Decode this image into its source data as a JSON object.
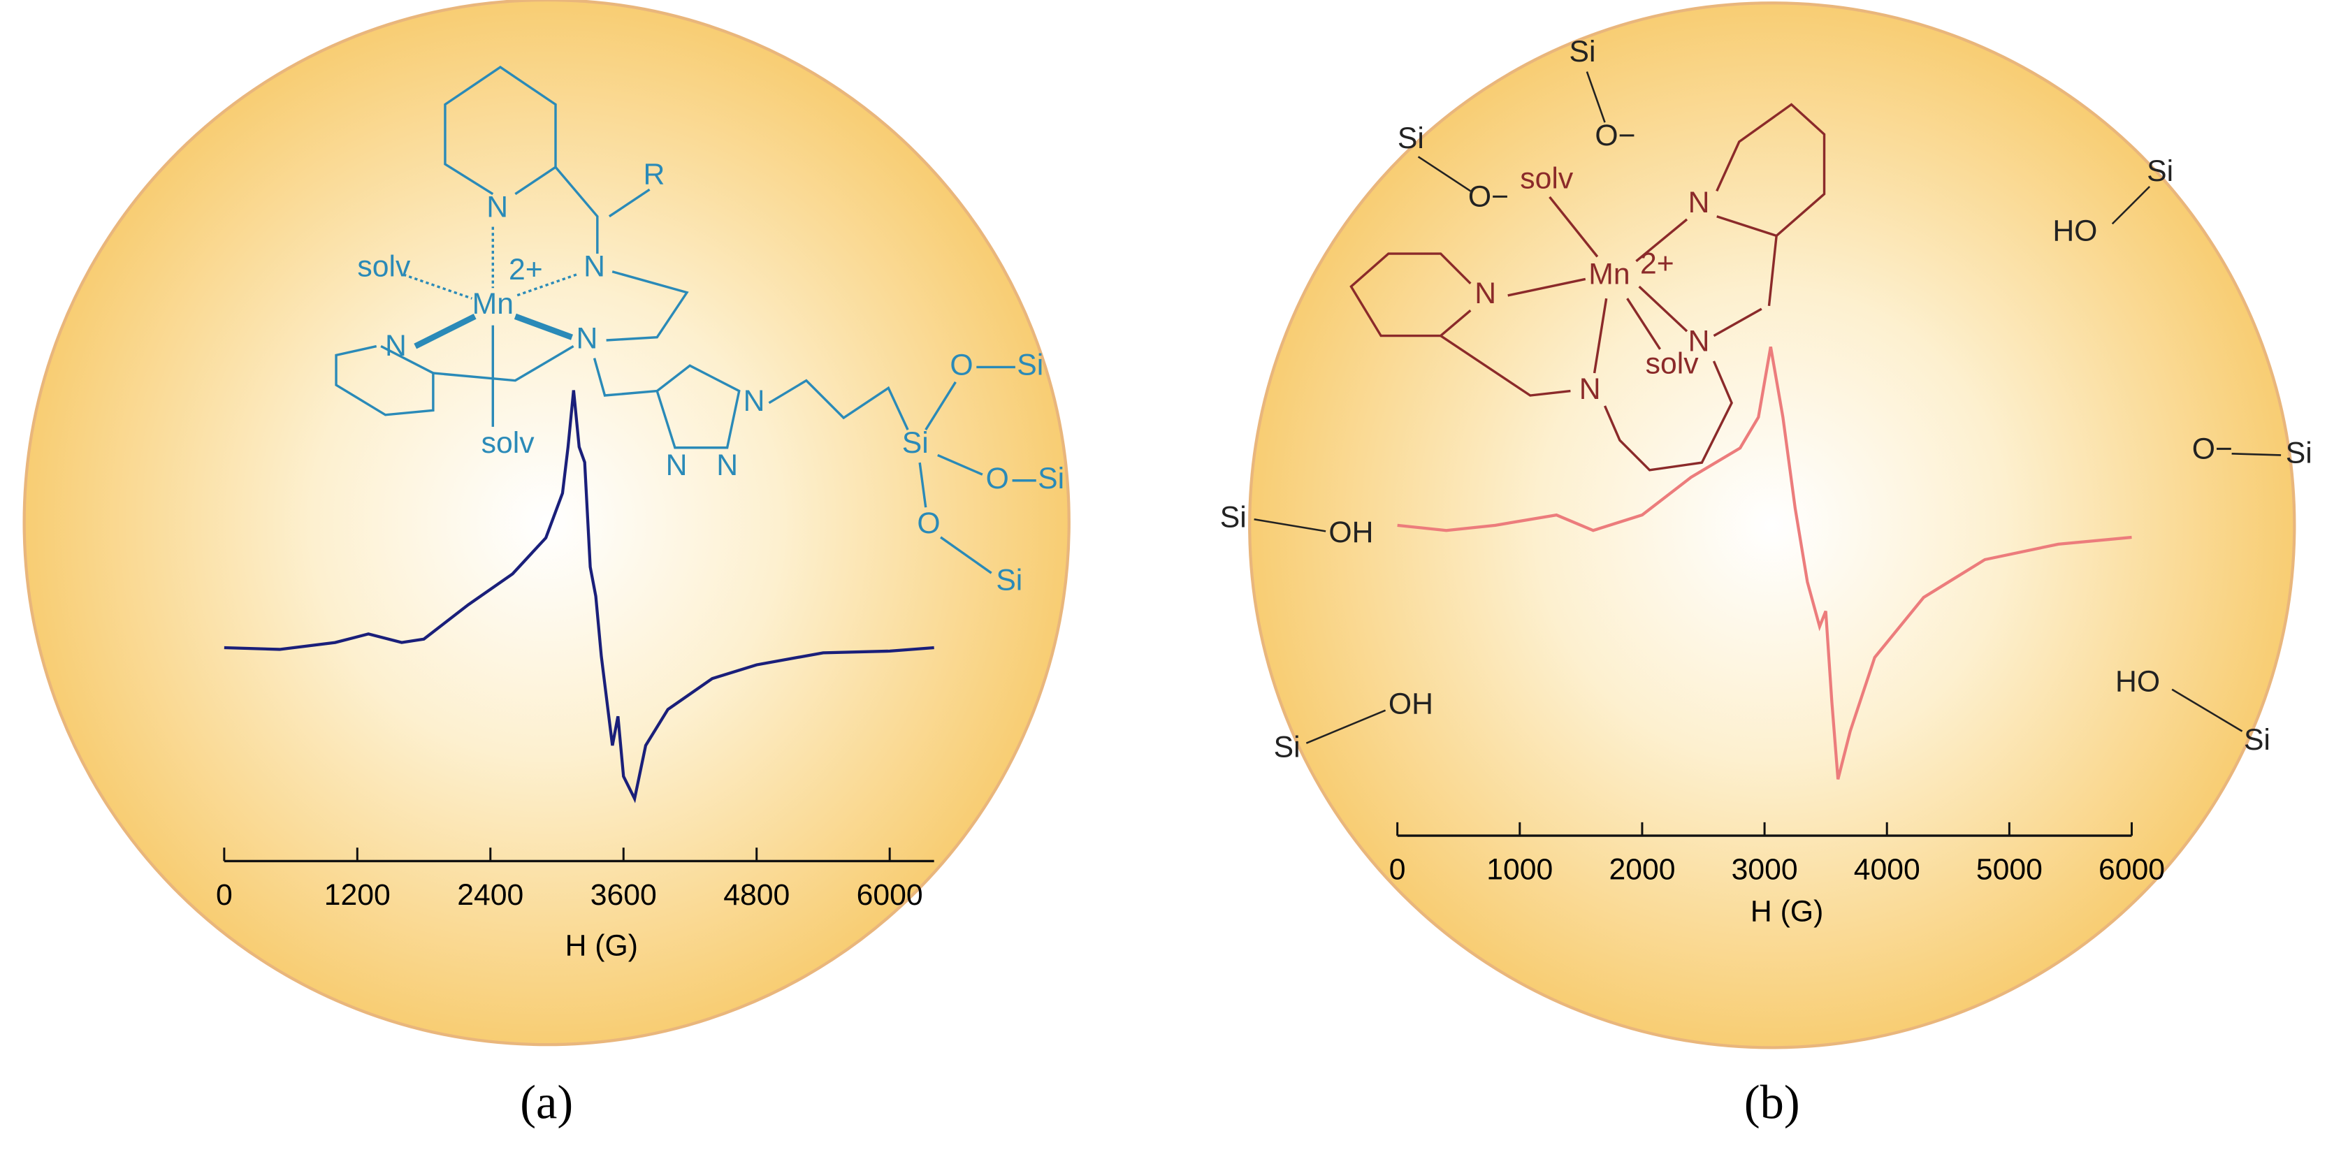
{
  "chart_data": [
    {
      "type": "line",
      "panel_label": "(a)",
      "xlabel": "H (G)",
      "color": "#1a1f7a",
      "x": [
        0,
        500,
        1000,
        1300,
        1600,
        1800,
        2200,
        2600,
        2900,
        3050,
        3100,
        3150,
        3200,
        3250,
        3300,
        3350,
        3400,
        3450,
        3500,
        3550,
        3600,
        3700,
        3800,
        4000,
        4400,
        4800,
        5400,
        6000,
        6400
      ],
      "values": [
        0,
        -0.01,
        0.03,
        0.08,
        0.03,
        0.05,
        0.25,
        0.43,
        0.64,
        0.9,
        1.17,
        1.5,
        1.17,
        1.08,
        0.47,
        0.3,
        -0.05,
        -0.31,
        -0.57,
        -0.4,
        -0.75,
        -0.88,
        -0.57,
        -0.36,
        -0.18,
        -0.1,
        -0.03,
        -0.02,
        0
      ],
      "xlim": [
        0,
        6400
      ],
      "xticks": [
        0,
        1200,
        2400,
        3600,
        4800,
        6000
      ],
      "ylim": [
        -1.2,
        1.6
      ],
      "structure_color": "#2a8ab8",
      "annotations": [
        "N",
        "R",
        "solv",
        "2+",
        "N",
        "Mn",
        "N",
        "N",
        "solv",
        "N",
        "N",
        "N",
        "Si",
        "O",
        "Si",
        "O",
        "Si",
        "O",
        "Si"
      ]
    },
    {
      "type": "line",
      "panel_label": "(b)",
      "xlabel": "H (G)",
      "color": "#ec7c7c",
      "x": [
        0,
        400,
        800,
        1300,
        1600,
        2000,
        2400,
        2800,
        2950,
        3050,
        3150,
        3250,
        3350,
        3450,
        3500,
        3550,
        3600,
        3700,
        3900,
        4300,
        4800,
        5400,
        6000
      ],
      "values": [
        0,
        -0.03,
        0,
        0.06,
        -0.03,
        0.06,
        0.28,
        0.45,
        0.63,
        1.04,
        0.63,
        0.1,
        -0.33,
        -0.59,
        -0.5,
        -1.03,
        -1.48,
        -1.2,
        -0.77,
        -0.42,
        -0.2,
        -0.11,
        -0.07
      ],
      "xlim": [
        0,
        6000
      ],
      "xticks": [
        0,
        1000,
        2000,
        3000,
        4000,
        5000,
        6000
      ],
      "ylim": [
        -1.6,
        1.2
      ],
      "structure_color": "#8b2a2a",
      "annotations": [
        "Si",
        "O−",
        "Si",
        "O−",
        "solv",
        "N",
        "Mn",
        "2+",
        "N",
        "N",
        "solv",
        "N",
        "Si",
        "HO",
        "O−",
        "Si",
        "Si",
        "OH",
        "OH",
        "Si",
        "HO",
        "Si"
      ]
    }
  ]
}
